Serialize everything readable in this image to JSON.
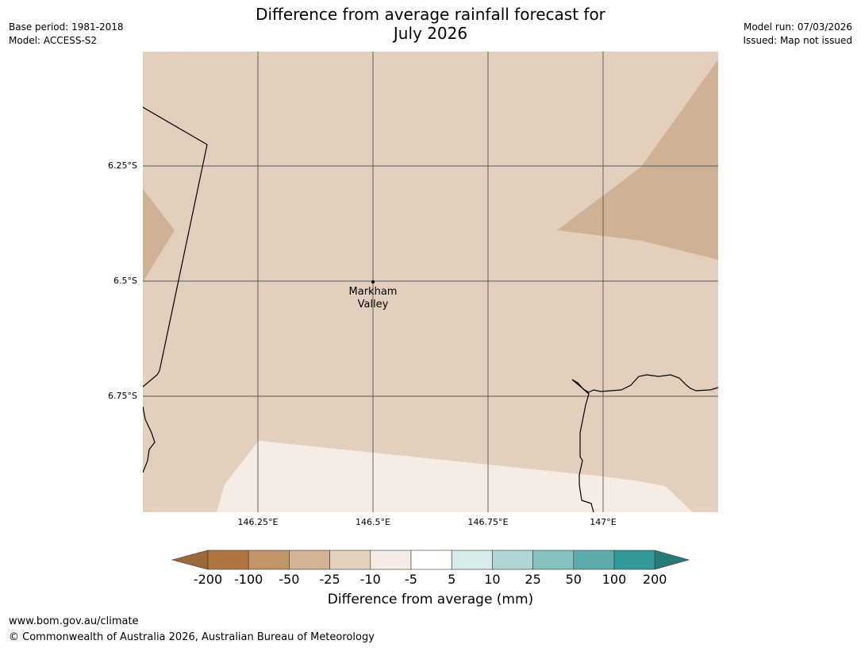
{
  "header": {
    "title_line1": "Difference from average rainfall forecast for",
    "title_line2": "July 2026",
    "base_period": "Base period: 1981-2018",
    "model": "Model: ACCESS-S2",
    "model_run": "Model run: 07/03/2026",
    "issued": "Issued: Map not issued"
  },
  "map": {
    "lat_labels": [
      "6.25°S",
      "6.5°S",
      "6.75°S"
    ],
    "lon_labels": [
      "146.25°E",
      "146.5°E",
      "146.75°E",
      "147°E"
    ],
    "place": {
      "line1": "Markham",
      "line2": "Valley"
    },
    "colors": {
      "background": "#e2cfbe",
      "drier": "#d0b193",
      "near_average": "#f5ece6",
      "gridline": "#555555",
      "coastline": "#000000"
    }
  },
  "colorbar": {
    "ticks": [
      "-200",
      "-100",
      "-50",
      "-25",
      "-10",
      "-5",
      "5",
      "10",
      "25",
      "50",
      "100",
      "200"
    ],
    "colors": [
      "#9b6937",
      "#ae763e",
      "#c29568",
      "#d3b394",
      "#e3d0bf",
      "#f5ece6",
      "#ffffff",
      "#d7ebea",
      "#afd6d5",
      "#85c2be",
      "#5badab",
      "#319a98",
      "#277a78"
    ],
    "title": "Difference from average (mm)"
  },
  "footer": {
    "url": "www.bom.gov.au/climate",
    "copyright": "© Commonwealth of Australia 2026, Australian Bureau of Meteorology"
  }
}
